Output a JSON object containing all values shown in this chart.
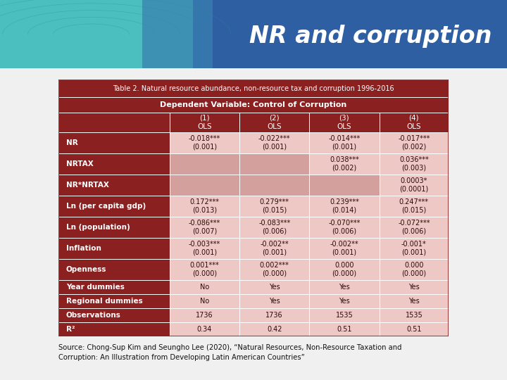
{
  "title": "NR and corruption",
  "title_color": "#FFFFFF",
  "title_bg_left": "#4BBFBF",
  "title_bg_right": "#2E5FA3",
  "header_bg": "#8B2020",
  "header_text_color": "#FFFFFF",
  "data_bg_light": "#EEC8C5",
  "data_bg_empty": "#D4A09D",
  "table_title": "Table 2. Natural resource abundance, non-resource tax and corruption 1996-2016",
  "dep_var": "Dependent Variable: Control of Corruption",
  "col_headers": [
    "",
    "(1)\nOLS",
    "(2)\nOLS",
    "(3)\nOLS",
    "(4)\nOLS"
  ],
  "rows": [
    {
      "label": "NR",
      "values": [
        "-0.018***\n(0.001)",
        "-0.022***\n(0.001)",
        "-0.014***\n(0.001)",
        "-0.017***\n(0.002)"
      ],
      "has_data": [
        true,
        true,
        true,
        true
      ]
    },
    {
      "label": "NRTAX",
      "values": [
        "",
        "",
        "0.038***\n(0.002)",
        "0.036***\n(0.003)"
      ],
      "has_data": [
        false,
        false,
        true,
        true
      ]
    },
    {
      "label": "NR*NRTAX",
      "values": [
        "",
        "",
        "",
        "0.0003*\n(0.0001)"
      ],
      "has_data": [
        false,
        false,
        false,
        true
      ]
    },
    {
      "label": "Ln (per capita gdp)",
      "values": [
        "0.172***\n(0.013)",
        "0.279***\n(0.015)",
        "0.239***\n(0.014)",
        "0.247***\n(0.015)"
      ],
      "has_data": [
        true,
        true,
        true,
        true
      ]
    },
    {
      "label": "Ln (population)",
      "values": [
        "-0.086***\n(0.007)",
        "-0.083***\n(0.006)",
        "-0.070***\n(0.006)",
        "-0.072***\n(0.006)"
      ],
      "has_data": [
        true,
        true,
        true,
        true
      ]
    },
    {
      "label": "Inflation",
      "values": [
        "-0.003***\n(0.001)",
        "-0.002**\n(0.001)",
        "-0.002**\n(0.001)",
        "-0.001*\n(0.001)"
      ],
      "has_data": [
        true,
        true,
        true,
        true
      ]
    },
    {
      "label": "Openness",
      "values": [
        "0.001***\n(0.000)",
        "0.002***\n(0.000)",
        "0.000\n(0.000)",
        "0.000\n(0.000)"
      ],
      "has_data": [
        true,
        true,
        true,
        true
      ]
    },
    {
      "label": "Year dummies",
      "values": [
        "No",
        "Yes",
        "Yes",
        "Yes"
      ],
      "has_data": [
        true,
        true,
        true,
        true
      ]
    },
    {
      "label": "Regional dummies",
      "values": [
        "No",
        "Yes",
        "Yes",
        "Yes"
      ],
      "has_data": [
        true,
        true,
        true,
        true
      ]
    },
    {
      "label": "Observations",
      "values": [
        "1736",
        "1736",
        "1535",
        "1535"
      ],
      "has_data": [
        true,
        true,
        true,
        true
      ]
    },
    {
      "label": "R²",
      "values": [
        "0.34",
        "0.42",
        "0.51",
        "0.51"
      ],
      "has_data": [
        true,
        true,
        true,
        true
      ]
    }
  ],
  "source_text": "Source: Chong-Sup Kim and Seungho Lee (2020), “Natural Resources, Non-Resource Taxation and\nCorruption: An Illustration from Developing Latin American Countries”",
  "global_bg": "#F0F0F0"
}
